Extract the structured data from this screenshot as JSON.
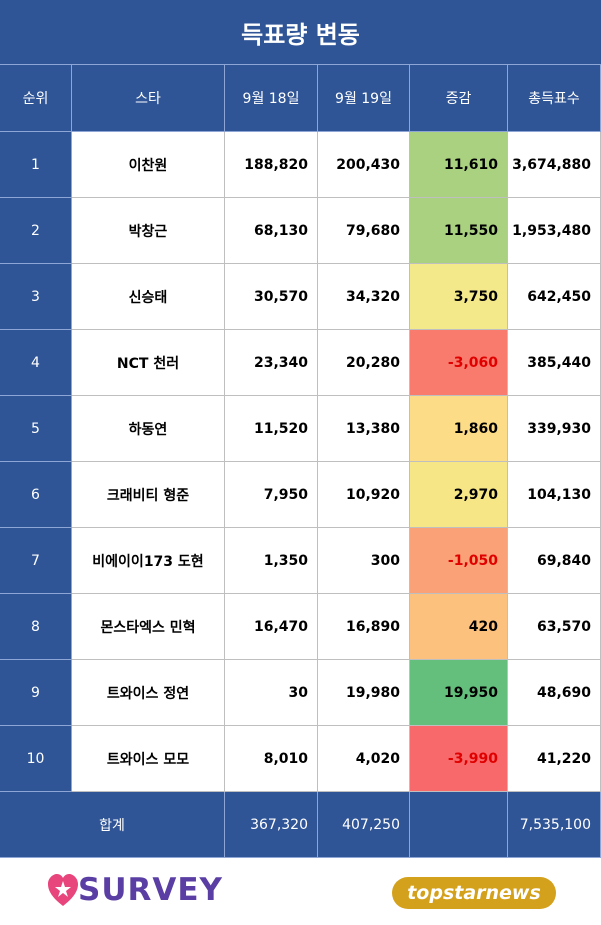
{
  "title": "득표량 변동",
  "table": {
    "header": [
      "순위",
      "스타",
      "9월 18일",
      "9월 19일",
      "증감",
      "총득표수"
    ],
    "rows": [
      [
        "1",
        "이찬원",
        "188,820",
        "200,430",
        "11,610",
        "3,674,880"
      ],
      [
        "2",
        "박창근",
        "68,130",
        "79,680",
        "11,550",
        "1,953,480"
      ],
      [
        "3",
        "신승태",
        "30,570",
        "34,320",
        "3,750",
        "642,450"
      ],
      [
        "4",
        "NCT 천러",
        "23,340",
        "20,280",
        "-3,060",
        "385,440"
      ],
      [
        "5",
        "하동연",
        "11,520",
        "13,380",
        "1,860",
        "339,930"
      ],
      [
        "6",
        "크래비티 형준",
        "7,950",
        "10,920",
        "2,970",
        "104,130"
      ],
      [
        "7",
        "비에이이173 도현",
        "1,350",
        "300",
        "-1,050",
        "69,840"
      ],
      [
        "8",
        "몬스타엑스 민혁",
        "16,470",
        "16,890",
        "420",
        "63,570"
      ],
      [
        "9",
        "트와이스 정연",
        "30",
        "19,980",
        "19,950",
        "48,690"
      ],
      [
        "10",
        "트와이스 모모",
        "8,010",
        "4,020",
        "-3,990",
        "41,220"
      ]
    ],
    "change_colors": [
      "#a9d17f",
      "#aad180",
      "#f3e98b",
      "#f87b6d",
      "#fcdc86",
      "#f6e685",
      "#faa177",
      "#fcc17c",
      "#64bf7c",
      "#f8696b"
    ],
    "total": {
      "label": "합계",
      "sep18": "367,320",
      "sep19": "407,250",
      "sum": "7,535,100"
    }
  },
  "footer": {
    "left": "SURVEY",
    "right": "topstarnews"
  }
}
